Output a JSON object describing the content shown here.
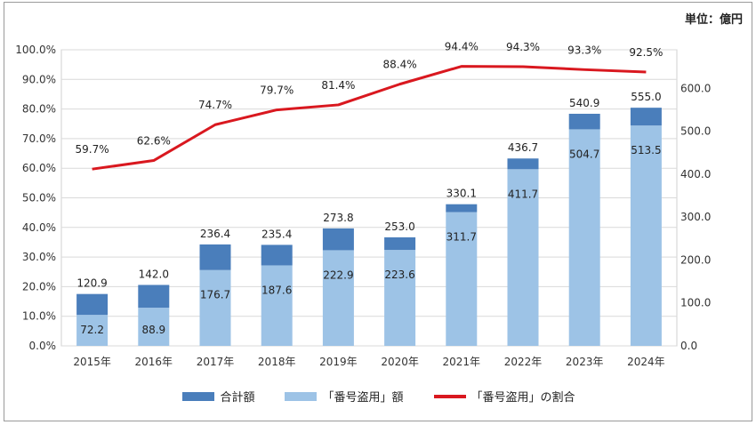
{
  "unit_label": "単位：億円",
  "colors": {
    "total": "#4a7ebb",
    "theft": "#9dc3e6",
    "ratio": "#d9181f",
    "grid": "#d9d9d9"
  },
  "legend": {
    "total": "合計額",
    "theft": "「番号盗用」額",
    "ratio": "「番号盗用」の割合"
  },
  "chart_data": {
    "type": "bar",
    "categories": [
      "2015年",
      "2016年",
      "2017年",
      "2018年",
      "2019年",
      "2020年",
      "2021年",
      "2022年",
      "2023年",
      "2024年"
    ],
    "series": [
      {
        "name": "合計額",
        "kind": "bar",
        "axis": "right",
        "values": [
          120.9,
          142.0,
          236.4,
          235.4,
          273.8,
          253.0,
          330.1,
          436.7,
          540.9,
          555.0
        ]
      },
      {
        "name": "「番号盗用」額",
        "kind": "bar",
        "axis": "right",
        "values": [
          72.2,
          88.9,
          176.7,
          187.6,
          222.9,
          223.6,
          311.7,
          411.7,
          504.7,
          513.5
        ]
      },
      {
        "name": "「番号盗用」の割合",
        "kind": "line",
        "axis": "left",
        "values": [
          59.7,
          62.6,
          74.7,
          79.7,
          81.4,
          88.4,
          94.4,
          94.3,
          93.3,
          92.5
        ]
      }
    ],
    "total_labels": [
      "120.9",
      "142.0",
      "236.4",
      "235.4",
      "273.8",
      "253.0",
      "330.1",
      "436.7",
      "540.9",
      "555.0"
    ],
    "theft_labels": [
      "72.2",
      "88.9",
      "176.7",
      "187.6",
      "222.9",
      "223.6",
      "311.7",
      "411.7",
      "504.7",
      "513.5"
    ],
    "ratio_labels": [
      "59.7%",
      "62.6%",
      "74.7%",
      "79.7%",
      "81.4%",
      "88.4%",
      "94.4%",
      "94.3%",
      "93.3%",
      "92.5%"
    ],
    "left_axis": {
      "ylim": [
        0,
        100
      ],
      "ticks": [
        "0.0%",
        "10.0%",
        "20.0%",
        "30.0%",
        "40.0%",
        "50.0%",
        "60.0%",
        "70.0%",
        "80.0%",
        "90.0%",
        "100.0%"
      ]
    },
    "right_axis": {
      "ylim": [
        0,
        690
      ],
      "ticks": [
        "0.0",
        "100.0",
        "200.0",
        "300.0",
        "400.0",
        "500.0",
        "600.0"
      ]
    },
    "grid": true,
    "legend_position": "bottom"
  }
}
